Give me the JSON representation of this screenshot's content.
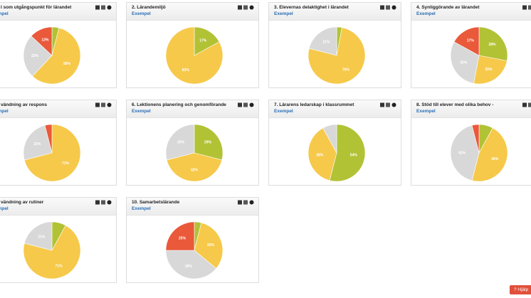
{
  "chart_data": [
    {
      "type": "pie",
      "title": "l som utgångspunkt för lärandet",
      "subtitle": "Exempel",
      "values": [
        4,
        58,
        25,
        13
      ],
      "value_labels": [
        null,
        "58%",
        "25%",
        "13%"
      ],
      "colors": [
        "#b2c235",
        "#f6c94a",
        "#d8d8d8",
        "#e9593a"
      ]
    },
    {
      "type": "pie",
      "title": "2. Lärandemiljö",
      "subtitle": "Exempel",
      "values": [
        17,
        83
      ],
      "value_labels": [
        "17%",
        "83%"
      ],
      "colors": [
        "#b2c235",
        "#f6c94a"
      ]
    },
    {
      "type": "pie",
      "title": "3. Elevernas delaktighet i lärandet",
      "subtitle": "Exempel",
      "values": [
        3,
        76,
        21
      ],
      "value_labels": [
        null,
        "76%",
        "21%"
      ],
      "colors": [
        "#b2c235",
        "#f6c94a",
        "#d8d8d8"
      ]
    },
    {
      "type": "pie",
      "title": "4. Synliggörande av lärandet",
      "subtitle": "Exempel",
      "values": [
        28,
        25,
        30,
        17
      ],
      "value_labels": [
        "28%",
        "25%",
        "30%",
        "17%"
      ],
      "colors": [
        "#b2c235",
        "#f6c94a",
        "#d8d8d8",
        "#e9593a"
      ]
    },
    {
      "type": "pie",
      "title": "vändning av respons",
      "subtitle": "Exempel",
      "values": [
        71,
        25,
        4
      ],
      "value_labels": [
        "71%",
        "25%",
        null
      ],
      "colors": [
        "#f6c94a",
        "#d8d8d8",
        "#e9593a"
      ]
    },
    {
      "type": "pie",
      "title": "6. Lektionens planering och genomförande",
      "subtitle": "Exempel",
      "values": [
        29,
        42,
        29
      ],
      "value_labels": [
        "29%",
        "42%",
        "29%"
      ],
      "colors": [
        "#b2c235",
        "#f6c94a",
        "#d8d8d8"
      ]
    },
    {
      "type": "pie",
      "title": "7. Lärarens ledarskap i klassrummet",
      "subtitle": "Exempel",
      "values": [
        54,
        38,
        8
      ],
      "value_labels": [
        "54%",
        "38%",
        null
      ],
      "colors": [
        "#b2c235",
        "#f6c94a",
        "#d8d8d8"
      ]
    },
    {
      "type": "pie",
      "title": "8. Stöd till elever med olika behov -",
      "subtitle": "Exempel",
      "values": [
        8,
        46,
        42,
        4
      ],
      "value_labels": [
        null,
        "46%",
        "42%",
        null
      ],
      "colors": [
        "#b2c235",
        "#f6c94a",
        "#d8d8d8",
        "#e9593a"
      ]
    },
    {
      "type": "pie",
      "title": "vändning av rutiner",
      "subtitle": "Exempel",
      "values": [
        8,
        71,
        21
      ],
      "value_labels": [
        null,
        "71%",
        "21%"
      ],
      "colors": [
        "#b2c235",
        "#f6c94a",
        "#d8d8d8"
      ]
    },
    {
      "type": "pie",
      "title": "10. Samarbetslärande",
      "subtitle": "Exempel",
      "values": [
        4,
        32,
        39,
        25
      ],
      "value_labels": [
        null,
        "32%",
        "39%",
        "25%"
      ],
      "colors": [
        "#b2c235",
        "#f6c94a",
        "#d8d8d8",
        "#e9593a"
      ]
    }
  ],
  "help": "Hjälp"
}
